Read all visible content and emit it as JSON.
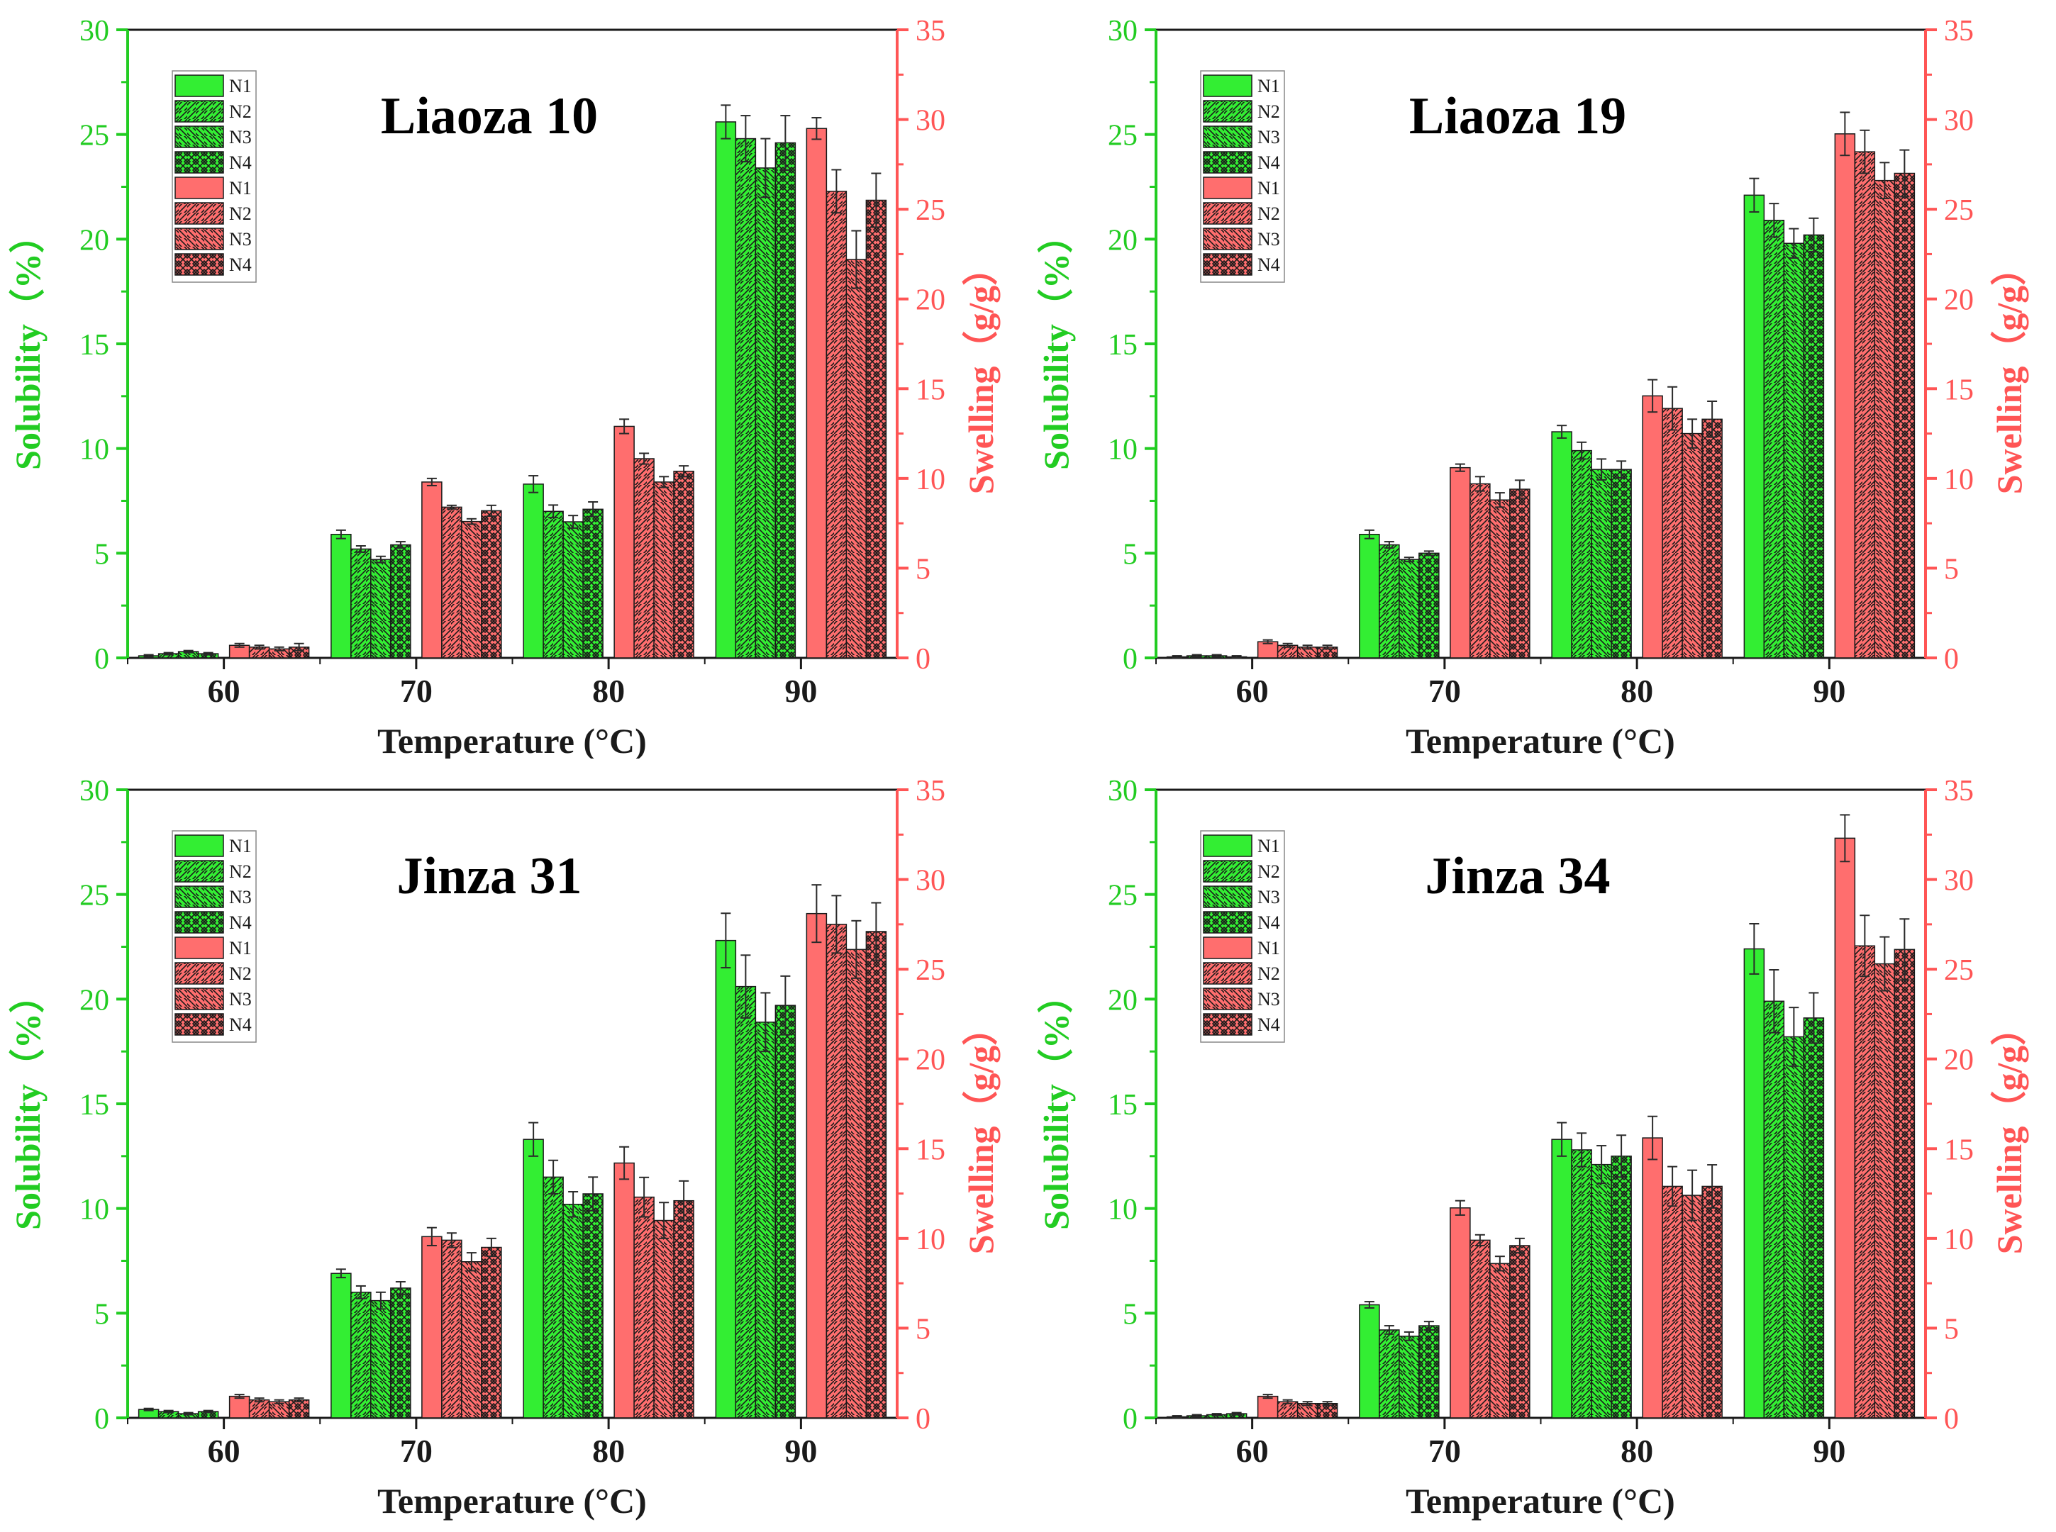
{
  "colors": {
    "solubility": "#33ee33",
    "swelling": "#ff6e6e",
    "solubility_axis": "#22cc22",
    "swelling_axis": "#ff5555",
    "bar_edge": "#1a1a1a"
  },
  "legend": {
    "labels": [
      "N1",
      "N2",
      "N3",
      "N4",
      "N1",
      "N2",
      "N3",
      "N4"
    ]
  },
  "chart_data": [
    {
      "type": "bar",
      "title": "Liaoza 10",
      "xlabel": "Temperature (°C)",
      "ylabel_left": "Solubility（%）",
      "ylabel_right": "Swelling（g/g）",
      "categories": [
        "60",
        "70",
        "80",
        "90"
      ],
      "ylim_left": [
        0,
        30
      ],
      "ylim_right": [
        0,
        35
      ],
      "yticks_left": [
        "0",
        "5",
        "10",
        "15",
        "20",
        "25",
        "30"
      ],
      "yticks_right": [
        "0",
        "5",
        "10",
        "15",
        "20",
        "25",
        "30",
        "35"
      ],
      "legend_position": "top-left",
      "solubility": [
        {
          "name": "N1",
          "values": [
            0.1,
            5.9,
            8.3,
            25.6
          ],
          "errors": [
            0.05,
            0.2,
            0.4,
            0.8
          ]
        },
        {
          "name": "N2",
          "values": [
            0.2,
            5.2,
            7.0,
            24.8
          ],
          "errors": [
            0.05,
            0.15,
            0.3,
            1.1
          ]
        },
        {
          "name": "N3",
          "values": [
            0.3,
            4.7,
            6.5,
            23.4
          ],
          "errors": [
            0.05,
            0.15,
            0.3,
            1.4
          ]
        },
        {
          "name": "N4",
          "values": [
            0.2,
            5.4,
            7.1,
            24.6
          ],
          "errors": [
            0.05,
            0.15,
            0.35,
            1.3
          ]
        }
      ],
      "swelling": [
        {
          "name": "N1",
          "values": [
            0.7,
            9.8,
            12.9,
            29.5
          ],
          "errors": [
            0.1,
            0.2,
            0.4,
            0.6
          ]
        },
        {
          "name": "N2",
          "values": [
            0.6,
            8.4,
            11.1,
            26.0
          ],
          "errors": [
            0.1,
            0.1,
            0.3,
            1.2
          ]
        },
        {
          "name": "N3",
          "values": [
            0.5,
            7.6,
            9.8,
            22.2
          ],
          "errors": [
            0.1,
            0.15,
            0.3,
            1.6
          ]
        },
        {
          "name": "N4",
          "values": [
            0.6,
            8.2,
            10.4,
            25.5
          ],
          "errors": [
            0.2,
            0.3,
            0.3,
            1.5
          ]
        }
      ]
    },
    {
      "type": "bar",
      "title": "Liaoza 19",
      "xlabel": "Temperature (°C)",
      "ylabel_left": "Solubility（%）",
      "ylabel_right": "Swelling（g/g）",
      "categories": [
        "60",
        "70",
        "80",
        "90"
      ],
      "ylim_left": [
        0,
        30
      ],
      "ylim_right": [
        0,
        35
      ],
      "yticks_left": [
        "0",
        "5",
        "10",
        "15",
        "20",
        "25",
        "30"
      ],
      "yticks_right": [
        "0",
        "5",
        "10",
        "15",
        "20",
        "25",
        "30",
        "35"
      ],
      "legend_position": "top-left",
      "solubility": [
        {
          "name": "N1",
          "values": [
            0.05,
            5.9,
            10.8,
            22.1
          ],
          "errors": [
            0.05,
            0.2,
            0.3,
            0.8
          ]
        },
        {
          "name": "N2",
          "values": [
            0.1,
            5.4,
            9.9,
            20.9
          ],
          "errors": [
            0.05,
            0.15,
            0.4,
            0.8
          ]
        },
        {
          "name": "N3",
          "values": [
            0.1,
            4.7,
            9.0,
            19.8
          ],
          "errors": [
            0.05,
            0.1,
            0.5,
            0.7
          ]
        },
        {
          "name": "N4",
          "values": [
            0.05,
            5.0,
            9.0,
            20.2
          ],
          "errors": [
            0.05,
            0.1,
            0.4,
            0.8
          ]
        }
      ],
      "swelling": [
        {
          "name": "N1",
          "values": [
            0.9,
            10.6,
            14.6,
            29.2
          ],
          "errors": [
            0.1,
            0.2,
            0.9,
            1.2
          ]
        },
        {
          "name": "N2",
          "values": [
            0.7,
            9.7,
            13.9,
            28.2
          ],
          "errors": [
            0.1,
            0.4,
            1.2,
            1.2
          ]
        },
        {
          "name": "N3",
          "values": [
            0.6,
            8.8,
            12.5,
            26.6
          ],
          "errors": [
            0.1,
            0.4,
            0.8,
            1.0
          ]
        },
        {
          "name": "N4",
          "values": [
            0.6,
            9.4,
            13.3,
            27.0
          ],
          "errors": [
            0.1,
            0.5,
            1.0,
            1.3
          ]
        }
      ]
    },
    {
      "type": "bar",
      "title": "Jinza 31",
      "xlabel": "Temperature (°C)",
      "ylabel_left": "Solubility（%）",
      "ylabel_right": "Swelling（g/g）",
      "categories": [
        "60",
        "70",
        "80",
        "90"
      ],
      "ylim_left": [
        0,
        30
      ],
      "ylim_right": [
        0,
        35
      ],
      "yticks_left": [
        "0",
        "5",
        "10",
        "15",
        "20",
        "25",
        "30"
      ],
      "yticks_right": [
        "0",
        "5",
        "10",
        "15",
        "20",
        "25",
        "30",
        "35"
      ],
      "legend_position": "top-left",
      "solubility": [
        {
          "name": "N1",
          "values": [
            0.4,
            6.9,
            13.3,
            22.8
          ],
          "errors": [
            0.05,
            0.2,
            0.8,
            1.3
          ]
        },
        {
          "name": "N2",
          "values": [
            0.3,
            6.0,
            11.5,
            20.6
          ],
          "errors": [
            0.05,
            0.3,
            0.8,
            1.5
          ]
        },
        {
          "name": "N3",
          "values": [
            0.2,
            5.6,
            10.2,
            18.9
          ],
          "errors": [
            0.05,
            0.4,
            0.6,
            1.4
          ]
        },
        {
          "name": "N4",
          "values": [
            0.3,
            6.2,
            10.7,
            19.7
          ],
          "errors": [
            0.05,
            0.3,
            0.8,
            1.4
          ]
        }
      ],
      "swelling": [
        {
          "name": "N1",
          "values": [
            1.2,
            10.1,
            14.2,
            28.1
          ],
          "errors": [
            0.1,
            0.5,
            0.9,
            1.6
          ]
        },
        {
          "name": "N2",
          "values": [
            1.0,
            9.9,
            12.3,
            27.5
          ],
          "errors": [
            0.1,
            0.4,
            1.1,
            1.6
          ]
        },
        {
          "name": "N3",
          "values": [
            0.9,
            8.7,
            11.0,
            26.1
          ],
          "errors": [
            0.1,
            0.5,
            1.0,
            1.6
          ]
        },
        {
          "name": "N4",
          "values": [
            1.0,
            9.5,
            12.1,
            27.1
          ],
          "errors": [
            0.1,
            0.5,
            1.1,
            1.6
          ]
        }
      ]
    },
    {
      "type": "bar",
      "title": "Jinza 34",
      "xlabel": "Temperature (°C)",
      "ylabel_left": "Solubility（%）",
      "ylabel_right": "Swelling（g/g）",
      "categories": [
        "60",
        "70",
        "80",
        "90"
      ],
      "ylim_left": [
        0,
        30
      ],
      "ylim_right": [
        0,
        35
      ],
      "yticks_left": [
        "0",
        "5",
        "10",
        "15",
        "20",
        "25",
        "30"
      ],
      "yticks_right": [
        "0",
        "5",
        "10",
        "15",
        "20",
        "25",
        "30",
        "35"
      ],
      "legend_position": "top-left",
      "solubility": [
        {
          "name": "N1",
          "values": [
            0.05,
            5.4,
            13.3,
            22.4
          ],
          "errors": [
            0.05,
            0.15,
            0.8,
            1.2
          ]
        },
        {
          "name": "N2",
          "values": [
            0.1,
            4.2,
            12.8,
            19.9
          ],
          "errors": [
            0.05,
            0.2,
            0.8,
            1.5
          ]
        },
        {
          "name": "N3",
          "values": [
            0.15,
            3.9,
            12.1,
            18.2
          ],
          "errors": [
            0.05,
            0.2,
            0.9,
            1.4
          ]
        },
        {
          "name": "N4",
          "values": [
            0.2,
            4.4,
            12.5,
            19.1
          ],
          "errors": [
            0.05,
            0.2,
            1.0,
            1.2
          ]
        }
      ],
      "swelling": [
        {
          "name": "N1",
          "values": [
            1.2,
            11.7,
            15.6,
            32.3
          ],
          "errors": [
            0.1,
            0.4,
            1.2,
            1.3
          ]
        },
        {
          "name": "N2",
          "values": [
            0.9,
            9.9,
            12.9,
            26.3
          ],
          "errors": [
            0.1,
            0.3,
            1.1,
            1.7
          ]
        },
        {
          "name": "N3",
          "values": [
            0.8,
            8.6,
            12.4,
            25.3
          ],
          "errors": [
            0.1,
            0.4,
            1.4,
            1.5
          ]
        },
        {
          "name": "N4",
          "values": [
            0.8,
            9.6,
            12.9,
            26.1
          ],
          "errors": [
            0.1,
            0.4,
            1.2,
            1.7
          ]
        }
      ]
    }
  ]
}
